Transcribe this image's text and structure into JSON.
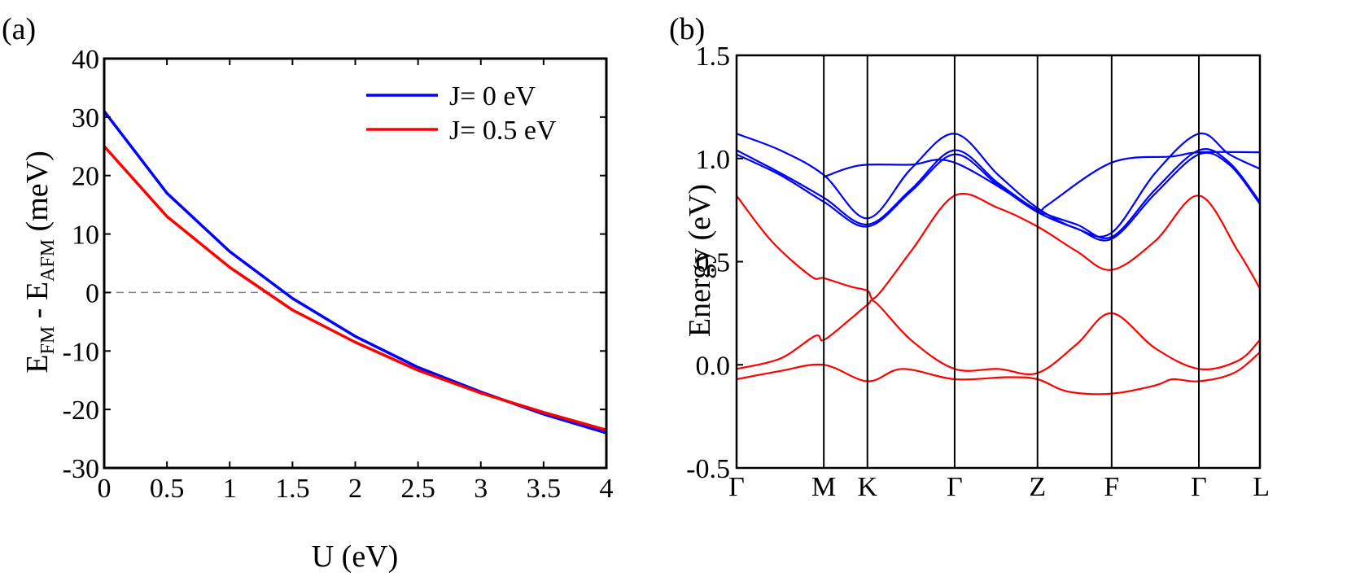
{
  "chart_data": [
    {
      "type": "line",
      "panel_label": "(a)",
      "xlabel": "U (eV)",
      "ylabel": {
        "base": "E",
        "sub1": "FM",
        "mid": " - E",
        "sub2": "AFM",
        "unit": " (meV)"
      },
      "xlim": [
        0,
        4
      ],
      "ylim": [
        -30,
        40
      ],
      "x_ticks": [
        0,
        0.5,
        1,
        1.5,
        2,
        2.5,
        3,
        3.5,
        4
      ],
      "x_tick_labels": [
        "0",
        "0.5",
        "1",
        "1.5",
        "2",
        "2.5",
        "3",
        "3.5",
        "4"
      ],
      "y_ticks": [
        -30,
        -20,
        -10,
        0,
        10,
        20,
        30,
        40
      ],
      "y_tick_labels": [
        "-30",
        "-20",
        "-10",
        "0",
        "10",
        "20",
        "30",
        "40"
      ],
      "reference_line": {
        "y": 0,
        "style": "dashed",
        "color": "#808080"
      },
      "legend_position": "top-right",
      "x": [
        0,
        0.5,
        1,
        1.5,
        2,
        2.5,
        3,
        3.5,
        4
      ],
      "series": [
        {
          "name": "J= 0 eV",
          "color": "#0000ff",
          "values": [
            31,
            17,
            7,
            -1,
            -7.5,
            -12.8,
            -17,
            -20.8,
            -24
          ]
        },
        {
          "name": "J= 0.5 eV",
          "color": "#ff0000",
          "values": [
            25,
            13,
            4.3,
            -3,
            -8.5,
            -13.3,
            -17.2,
            -20.5,
            -23.5
          ]
        }
      ]
    },
    {
      "type": "line",
      "panel_label": "(b)",
      "xlabel": "",
      "ylabel": "Energy (eV)",
      "ylim": [
        -0.5,
        1.5
      ],
      "y_ticks": [
        -0.5,
        0.0,
        0.5,
        1.0,
        1.5
      ],
      "y_tick_labels": [
        "-0.5",
        "0.0",
        "0.5",
        "1.0",
        "1.5"
      ],
      "k_points": [
        "Γ",
        "M",
        "K",
        "Γ",
        "Z",
        "F",
        "Γ",
        "L"
      ],
      "k_positions": [
        0,
        1,
        1.5,
        2.5,
        3.45,
        4.3,
        5.3,
        6
      ],
      "series": [
        {
          "name": "blue band 1",
          "color": "#0000ff",
          "x": [
            0,
            0.5,
            1,
            1.5,
            2,
            2.5,
            3,
            3.45,
            3.9,
            4.3,
            4.8,
            5.3,
            5.65,
            6
          ],
          "y": [
            1.12,
            1.04,
            0.92,
            0.71,
            0.95,
            1.12,
            0.92,
            0.76,
            0.66,
            0.64,
            0.93,
            1.12,
            1.02,
            0.95
          ]
        },
        {
          "name": "blue band 2",
          "color": "#0000ff",
          "x": [
            0,
            0.5,
            1,
            1.5,
            2,
            2.5,
            3,
            3.45,
            3.9,
            4.3,
            4.8,
            5.3,
            5.65,
            6
          ],
          "y": [
            1.04,
            0.93,
            0.81,
            0.68,
            0.85,
            1.04,
            0.88,
            0.75,
            0.68,
            0.62,
            0.85,
            1.04,
            0.98,
            0.79
          ]
        },
        {
          "name": "blue band 3",
          "color": "#0000ff",
          "x": [
            0,
            0.5,
            1,
            1.5,
            2,
            2.5,
            3,
            3.45,
            3.9,
            4.3,
            4.8,
            5.3,
            5.65,
            6
          ],
          "y": [
            1.02,
            0.92,
            0.79,
            0.67,
            0.84,
            1.02,
            0.87,
            0.74,
            0.66,
            0.61,
            0.83,
            1.02,
            0.97,
            0.78
          ]
        },
        {
          "name": "blue band 4",
          "color": "#0000ff",
          "x": [
            1,
            1.25,
            1.5,
            2,
            2.5,
            3.45,
            3.55,
            4.3,
            5.0,
            5.3,
            6
          ],
          "y": [
            0.91,
            0.95,
            0.97,
            0.97,
            0.98,
            0.75,
            0.77,
            0.98,
            1.01,
            1.03,
            1.03
          ]
        },
        {
          "name": "red band 1",
          "color": "#ff0000",
          "x": [
            0,
            0.4,
            0.85,
            1,
            1.3,
            1.5,
            1.6,
            2.0,
            2.5,
            3.0,
            3.45,
            3.9,
            4.3,
            4.8,
            5.3,
            5.75,
            6
          ],
          "y": [
            0.82,
            0.6,
            0.43,
            0.42,
            0.38,
            0.36,
            0.33,
            0.55,
            0.82,
            0.76,
            0.67,
            0.55,
            0.46,
            0.6,
            0.82,
            0.55,
            0.37
          ]
        },
        {
          "name": "red band 2",
          "color": "#ff0000",
          "x": [
            0,
            0.5,
            0.9,
            1,
            1.3,
            1.5,
            1.6,
            2.0,
            2.5,
            3.0,
            3.45,
            3.9,
            4.3,
            4.8,
            5.3,
            5.75,
            6
          ],
          "y": [
            -0.02,
            0.03,
            0.14,
            0.12,
            0.22,
            0.29,
            0.3,
            0.12,
            -0.02,
            -0.02,
            -0.04,
            0.1,
            0.25,
            0.08,
            -0.02,
            0.02,
            0.12
          ]
        },
        {
          "name": "red band 3",
          "color": "#ff0000",
          "x": [
            0,
            0.5,
            1,
            1.5,
            1.9,
            2.5,
            3.1,
            3.45,
            3.8,
            4.3,
            4.8,
            5.0,
            5.3,
            5.7,
            6
          ],
          "y": [
            -0.07,
            -0.03,
            0.0,
            -0.08,
            -0.02,
            -0.07,
            -0.06,
            -0.07,
            -0.13,
            -0.14,
            -0.1,
            -0.07,
            -0.08,
            -0.04,
            0.06
          ]
        }
      ]
    }
  ]
}
